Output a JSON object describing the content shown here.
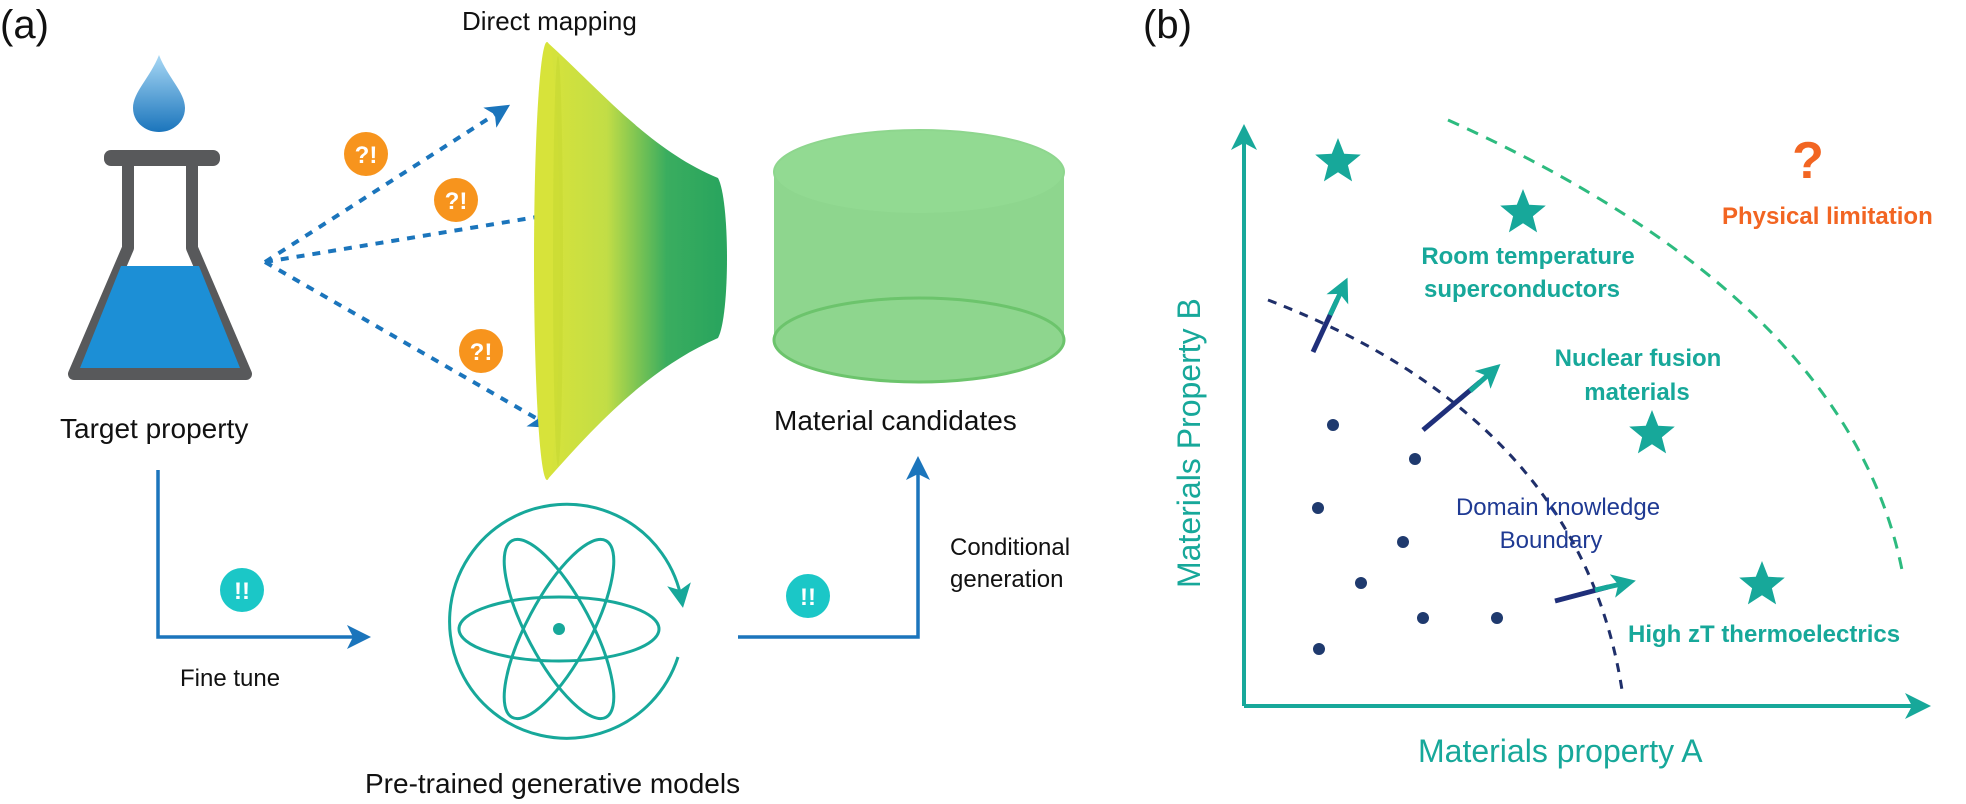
{
  "panel_a": {
    "label": "(a)",
    "target_property": "Target property",
    "direct_mapping": "Direct mapping",
    "material_candidates": "Material candidates",
    "fine_tune": "Fine tune",
    "pretrained": "Pre-trained generative models",
    "conditional_line1": "Conditional",
    "conditional_line2": "generation",
    "badge_question": "?!",
    "badge_exclaim": "!!"
  },
  "panel_b": {
    "label": "(b)",
    "x_axis": "Materials property A",
    "y_axis": "Materials Property B",
    "physical_limitation": "Physical limitation",
    "question_mark": "?",
    "room_temp_line1": "Room temperature",
    "room_temp_line2": "superconductors",
    "fusion_line1": "Nuclear fusion",
    "fusion_line2": "materials",
    "domain_line1": "Domain knowledge",
    "domain_line2": "Boundary",
    "thermo": "High zT thermoelectrics"
  },
  "colors": {
    "teal": "#17a89a",
    "blue_arrow": "#1b75bc",
    "orange": "#f7941d",
    "physical_limitation": "#f26522",
    "navy": "#1f3a93",
    "flask_gray": "#58595b",
    "liquid_blue": "#1c8fd6",
    "cylinder_green": "#8ed68e",
    "funnel_yellow": "#d7e33a",
    "funnel_green": "#2aa55e"
  },
  "icons": [
    "flask-icon",
    "droplet-icon",
    "funnel-icon",
    "cylinder-icon",
    "atom-icon",
    "star-icon"
  ]
}
